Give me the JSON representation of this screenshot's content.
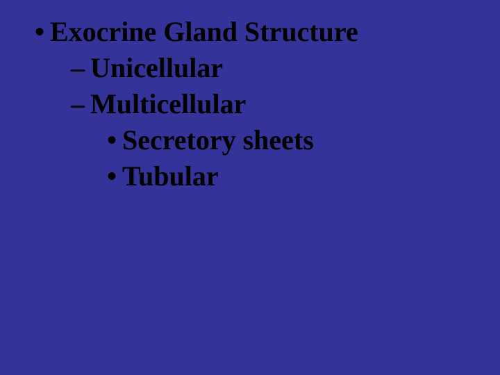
{
  "background_color": "#333399",
  "text_color": "#000000",
  "font_family": "Times New Roman",
  "font_weight": "bold",
  "font_size_pt": 30,
  "bullets": {
    "dot": "•",
    "dash": "–"
  },
  "items": [
    {
      "level": 1,
      "text": "Exocrine Gland Structure"
    },
    {
      "level": 2,
      "text": "Unicellular"
    },
    {
      "level": 2,
      "text": "Multicellular"
    },
    {
      "level": 3,
      "text": "Secretory sheets"
    },
    {
      "level": 3,
      "text": "Tubular"
    }
  ]
}
